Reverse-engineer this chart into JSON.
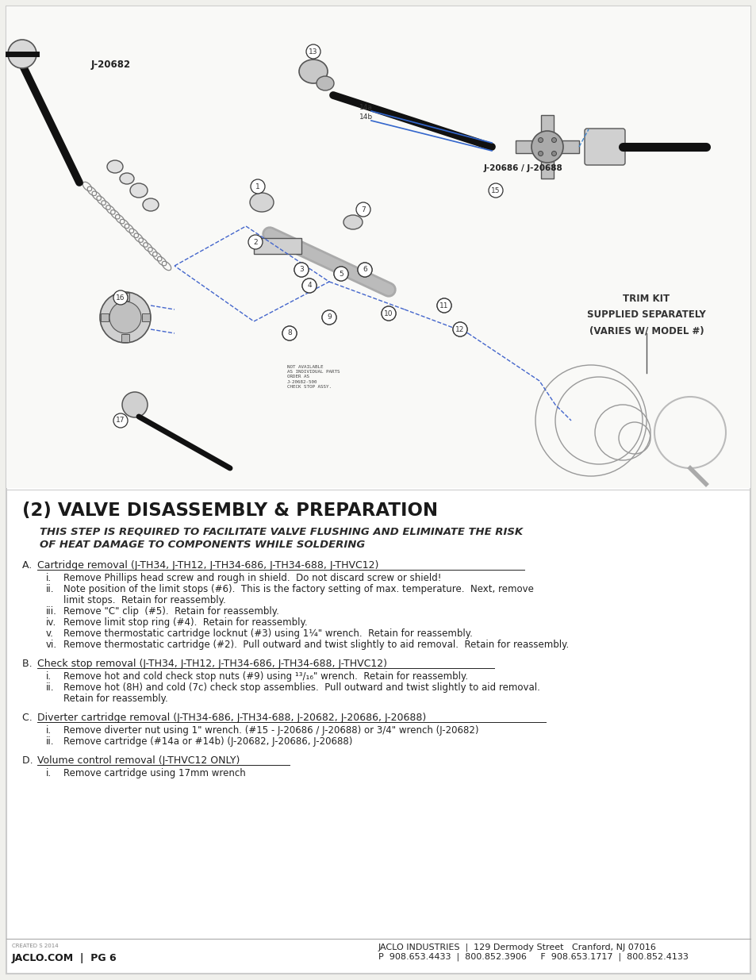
{
  "page_bg": "#f0f0ec",
  "content_bg": "#ffffff",
  "border_color": "#cccccc",
  "title_main": "(2) VALVE DISASSEMBLY & PREPARATION",
  "title_sub1": "THIS STEP IS REQUIRED TO FACILITATE VALVE FLUSHING AND ELIMINATE THE RISK",
  "title_sub2": "OF HEAT DAMAGE TO COMPONENTS WHILE SOLDERING",
  "footer_left1": "CREATED S 2014",
  "footer_left2": "JACLO.COM  |  PG 6",
  "footer_right1": "JACLO INDUSTRIES  |  129 Dermody Street   Cranford, NJ 07016",
  "footer_right2": "P  908.653.4433  |  800.852.3906     F  908.653.1717  |  800.852.4133",
  "trim_kit_text": "TRIM KIT\nSUPPLIED SEPARATELY\n(VARIES W/ MODEL #)",
  "label_j20682": "J-20682",
  "label_j20686": "J-20686 / J-20688",
  "not_avail_text": "NOT AVAILABLE\nAS INDIVIDUAL PARTS\nORDER AS\nJ-20682-500\nCHECK STOP ASSY."
}
